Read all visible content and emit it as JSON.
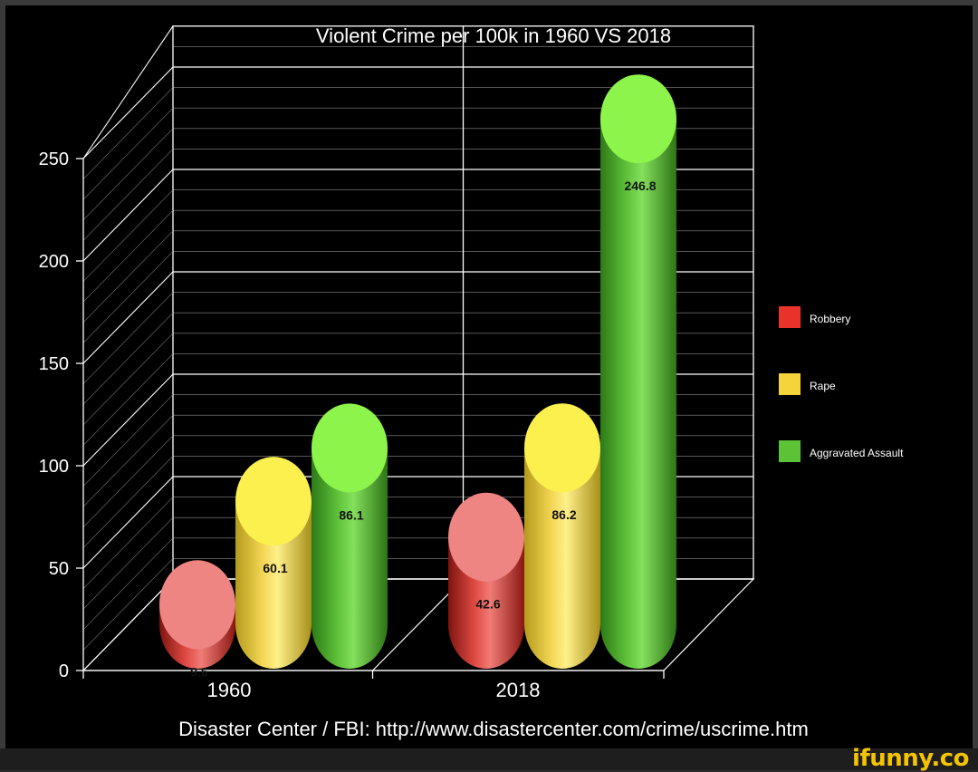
{
  "chart_data": {
    "type": "bar",
    "title": "Violent Crime per 100k in 1960 VS 2018",
    "categories": [
      "1960",
      "2018"
    ],
    "series": [
      {
        "name": "Robbery",
        "values": [
          9.6,
          42.6
        ],
        "color": "#e8322a"
      },
      {
        "name": "Rape",
        "values": [
          60.1,
          86.2
        ],
        "color": "#f5d33a"
      },
      {
        "name": "Aggravated Assault",
        "values": [
          86.1,
          246.8
        ],
        "color": "#5cc236"
      }
    ],
    "data_labels": [
      [
        "9.6",
        "60.1",
        "86.1"
      ],
      [
        "42.6",
        "86.2",
        "246.8"
      ]
    ],
    "y_ticks": [
      0,
      50,
      100,
      150,
      200,
      250
    ],
    "ylim": [
      0,
      250
    ],
    "xlabel": "",
    "ylabel": "",
    "grid": true,
    "legend_position": "right",
    "source": "Disaster Center / FBI: http://www.disastercenter.com/crime/uscrime.htm"
  },
  "watermark": "ifunny.co"
}
